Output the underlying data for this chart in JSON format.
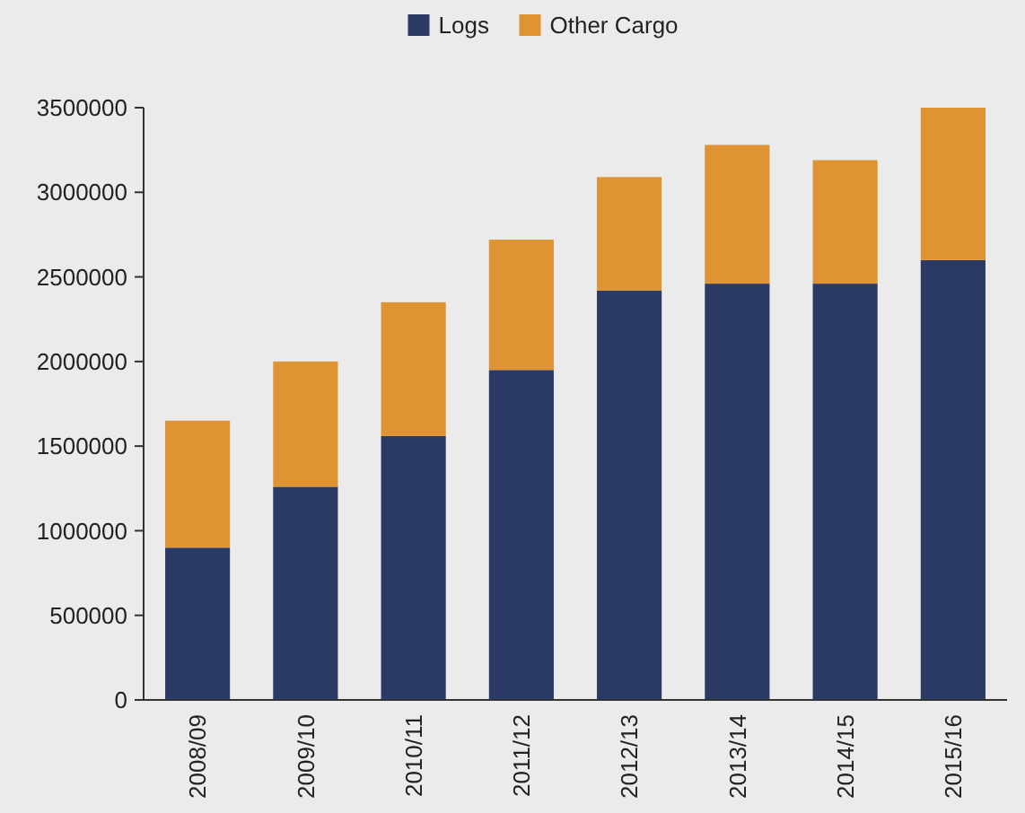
{
  "chart_data": {
    "type": "bar",
    "stacked": true,
    "categories": [
      "2008/09",
      "2009/10",
      "2010/11",
      "2011/12",
      "2012/13",
      "2013/14",
      "2014/15",
      "2015/16"
    ],
    "series": [
      {
        "name": "Logs",
        "color": "#2b3a64",
        "values": [
          900000,
          1260000,
          1560000,
          1950000,
          2420000,
          2460000,
          2460000,
          2600000
        ]
      },
      {
        "name": "Other Cargo",
        "color": "#e09332",
        "values": [
          750000,
          740000,
          790000,
          770000,
          670000,
          820000,
          730000,
          900000
        ]
      }
    ],
    "ylim": [
      0,
      3500000
    ],
    "yticks": [
      0,
      500000,
      1000000,
      1500000,
      2000000,
      2500000,
      3000000,
      3500000
    ],
    "grid": false,
    "legend": "top"
  }
}
